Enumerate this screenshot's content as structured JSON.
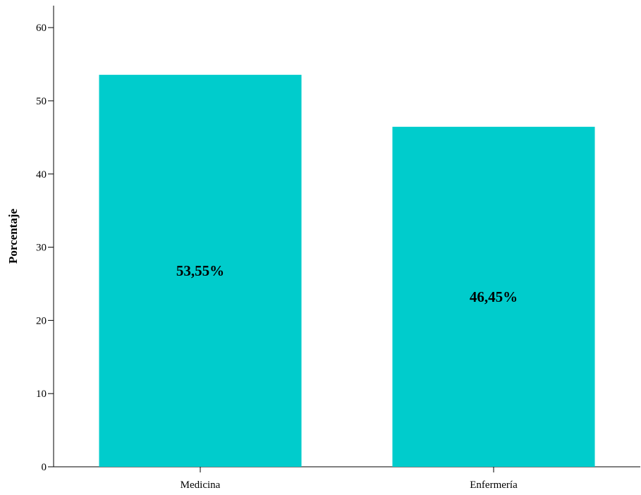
{
  "chart_data": {
    "type": "bar",
    "title": "",
    "xlabel": "",
    "ylabel": "Porcentaje",
    "ylim": [
      0,
      63
    ],
    "yticks": [
      "0",
      "10",
      "20",
      "30",
      "40",
      "50",
      "60"
    ],
    "categories": [
      "Medicina",
      "Enfermería"
    ],
    "values": [
      53.55,
      46.45
    ],
    "data_labels": [
      "53,55%",
      "46,45%"
    ],
    "grid": false,
    "legend": "none",
    "colors": {
      "bar": "#00cccc",
      "axis": "#000000",
      "text": "#000000"
    }
  }
}
